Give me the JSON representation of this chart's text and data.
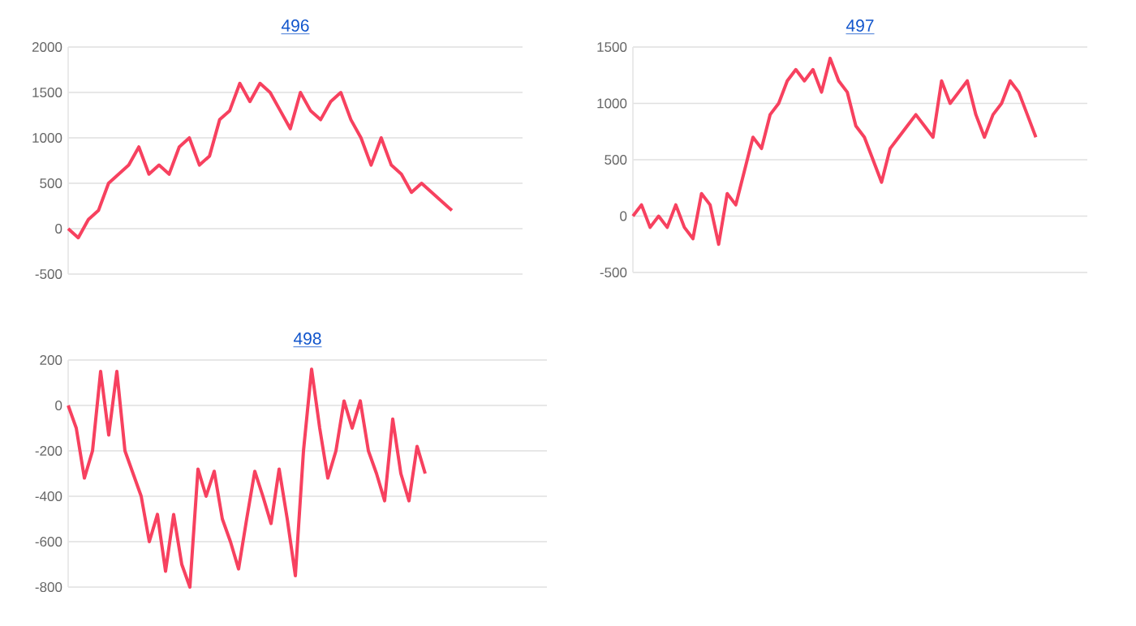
{
  "chart_data": [
    {
      "type": "line",
      "title": "496",
      "color": "#f7415f",
      "grid": "y",
      "ylim": [
        -500,
        2000
      ],
      "yticks": [
        -500,
        0,
        500,
        1000,
        1500,
        2000
      ],
      "categories": [
        null,
        null,
        null,
        null,
        null,
        null,
        null,
        null,
        null,
        null,
        null,
        null,
        null,
        null,
        null,
        null,
        null,
        null,
        null,
        null,
        null,
        null,
        null,
        null,
        null,
        null,
        null,
        null,
        null,
        null,
        null,
        null,
        null,
        null,
        null,
        null,
        null,
        null,
        null,
        null,
        null,
        null,
        null,
        null,
        null,
        null
      ],
      "values": [
        0,
        -100,
        100,
        200,
        500,
        600,
        700,
        900,
        600,
        700,
        600,
        900,
        1000,
        700,
        800,
        1200,
        1300,
        1600,
        1400,
        1600,
        1500,
        1300,
        1100,
        1500,
        1300,
        1200,
        1400,
        1500,
        1200,
        1000,
        700,
        1000,
        700,
        600,
        400,
        500,
        400,
        300,
        200,
        null,
        null,
        null,
        null,
        null,
        null,
        null
      ]
    },
    {
      "type": "line",
      "title": "497",
      "color": "#f7415f",
      "grid": "y",
      "ylim": [
        -500,
        1500
      ],
      "yticks": [
        -500,
        0,
        500,
        1000,
        1500
      ],
      "categories": [
        null,
        null,
        null,
        null,
        null,
        null,
        null,
        null,
        null,
        null,
        null,
        null,
        null,
        null,
        null,
        null,
        null,
        null,
        null,
        null,
        null,
        null,
        null,
        null,
        null,
        null,
        null,
        null,
        null,
        null,
        null,
        null,
        null,
        null,
        null,
        null,
        null,
        null,
        null,
        null,
        null,
        null,
        null,
        null,
        null,
        null,
        null,
        null,
        null,
        null,
        null,
        null,
        null,
        null
      ],
      "values": [
        0,
        100,
        -100,
        0,
        -100,
        100,
        -100,
        -200,
        200,
        100,
        -250,
        200,
        100,
        400,
        700,
        600,
        900,
        1000,
        1200,
        1300,
        1200,
        1300,
        1100,
        1400,
        1200,
        1100,
        800,
        700,
        500,
        300,
        600,
        700,
        800,
        900,
        800,
        700,
        1200,
        1000,
        1100,
        1200,
        900,
        700,
        900,
        1000,
        1200,
        1100,
        900,
        700,
        null,
        null,
        null,
        null,
        null,
        null
      ]
    },
    {
      "type": "line",
      "title": "498",
      "color": "#f7415f",
      "grid": "y",
      "ylim": [
        -800,
        200
      ],
      "yticks": [
        -800,
        -600,
        -400,
        -200,
        0,
        200
      ],
      "categories": [
        null,
        null,
        null,
        null,
        null,
        null,
        null,
        null,
        null,
        null,
        null,
        null,
        null,
        null,
        null,
        null,
        null,
        null,
        null,
        null,
        null,
        null,
        null,
        null,
        null,
        null,
        null,
        null,
        null,
        null,
        null,
        null,
        null,
        null,
        null,
        null,
        null,
        null,
        null,
        null,
        null,
        null,
        null,
        null,
        null,
        null,
        null,
        null,
        null,
        null,
        null,
        null,
        null,
        null,
        null,
        null,
        null,
        null,
        null,
        null
      ],
      "values": [
        0,
        -100,
        -320,
        -200,
        150,
        -130,
        150,
        -200,
        -300,
        -400,
        -600,
        -480,
        -730,
        -480,
        -700,
        -800,
        -280,
        -400,
        -290,
        -500,
        -600,
        -720,
        -500,
        -290,
        -400,
        -520,
        -280,
        -500,
        -750,
        -200,
        160,
        -100,
        -320,
        -200,
        20,
        -100,
        20,
        -200,
        -300,
        -420,
        -60,
        -300,
        -420,
        -180,
        -300,
        null,
        null,
        null,
        null,
        null,
        null,
        null,
        null,
        null,
        null,
        null,
        null,
        null,
        null,
        null
      ]
    }
  ]
}
